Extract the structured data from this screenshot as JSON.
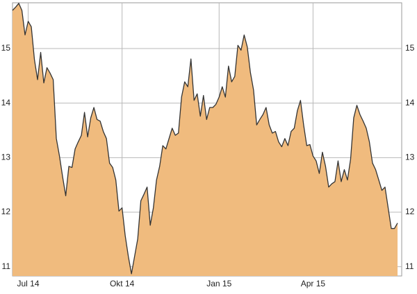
{
  "chart_data": {
    "type": "area",
    "categories": [
      null,
      null,
      null,
      null,
      null,
      "Jul 14",
      null,
      null,
      null,
      null,
      null,
      null,
      null,
      null,
      null,
      null,
      null,
      null,
      null,
      null,
      null,
      null,
      null,
      null,
      null,
      null,
      null,
      null,
      null,
      null,
      null,
      null,
      null,
      null,
      null,
      "Okt 14",
      null,
      null,
      null,
      null,
      null,
      null,
      null,
      null,
      null,
      null,
      null,
      null,
      null,
      null,
      null,
      null,
      null,
      null,
      null,
      null,
      null,
      null,
      null,
      null,
      null,
      null,
      null,
      null,
      null,
      null,
      "Jan 15",
      null,
      null,
      null,
      null,
      null,
      null,
      null,
      null,
      null,
      null,
      null,
      null,
      null,
      null,
      null,
      null,
      null,
      null,
      null,
      null,
      null,
      null,
      null,
      null,
      null,
      null,
      null,
      null,
      null,
      "Apr 15",
      null,
      null,
      null,
      null,
      null,
      null,
      null,
      null,
      null,
      null,
      null,
      null,
      null,
      null,
      null,
      null,
      null,
      null,
      null,
      null,
      null,
      null,
      null,
      null,
      null,
      null,
      null
    ],
    "values": [
      15.7,
      15.76,
      15.83,
      15.7,
      15.25,
      15.5,
      15.4,
      14.8,
      14.43,
      14.93,
      14.37,
      14.65,
      14.55,
      14.43,
      13.35,
      13.03,
      12.65,
      12.3,
      12.84,
      12.82,
      13.16,
      13.29,
      13.41,
      13.83,
      13.38,
      13.73,
      13.92,
      13.7,
      13.67,
      13.48,
      13.35,
      12.9,
      12.82,
      12.59,
      12.02,
      12.08,
      11.57,
      11.19,
      10.87,
      11.19,
      11.51,
      12.21,
      12.33,
      12.46,
      11.76,
      12.08,
      12.59,
      12.84,
      13.22,
      13.16,
      13.35,
      13.54,
      13.41,
      13.45,
      14.11,
      14.39,
      14.3,
      14.81,
      14.05,
      14.17,
      13.76,
      14.14,
      13.7,
      13.92,
      13.92,
      13.98,
      14.11,
      14.3,
      14.11,
      14.68,
      14.39,
      14.49,
      15.06,
      14.97,
      15.25,
      15.03,
      14.56,
      14.24,
      13.6,
      13.7,
      13.79,
      13.92,
      13.6,
      13.45,
      13.48,
      13.29,
      13.2,
      13.35,
      13.22,
      13.48,
      13.54,
      13.86,
      14.05,
      13.6,
      13.22,
      13.24,
      13.03,
      12.94,
      12.71,
      13.1,
      12.84,
      12.46,
      12.52,
      12.56,
      12.94,
      12.56,
      12.78,
      12.59,
      12.97,
      13.73,
      13.96,
      13.79,
      13.67,
      13.54,
      13.29,
      12.9,
      12.78,
      12.59,
      12.4,
      12.46,
      12.08,
      11.7,
      11.7,
      11.8
    ],
    "color": "#f0bb7e",
    "line_color": "#333333",
    "ylim": [
      10.83,
      15.84
    ],
    "yticks": [
      11,
      12,
      13,
      14,
      15
    ],
    "grid": true
  }
}
